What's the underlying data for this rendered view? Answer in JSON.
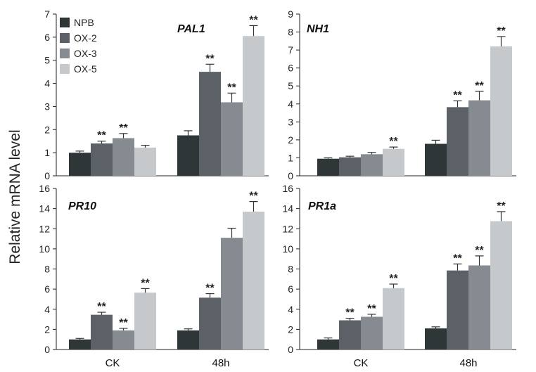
{
  "y_axis_label": "Relative mRNA level",
  "chart_data": [
    {
      "type": "bar",
      "title": "PAL1",
      "xlabel": "",
      "ylabel": "Relative mRNA level",
      "categories": [
        "CK",
        "48h"
      ],
      "ylim": [
        0,
        7
      ],
      "yticks": [
        0,
        1,
        2,
        3,
        4,
        5,
        6,
        7
      ],
      "error_bars": true,
      "series": [
        {
          "name": "NPB",
          "values": [
            1.0,
            1.75
          ],
          "errors": [
            0.07,
            0.2
          ],
          "annotations": [
            "",
            ""
          ]
        },
        {
          "name": "OX-2",
          "values": [
            1.4,
            4.5
          ],
          "errors": [
            0.1,
            0.33
          ],
          "annotations": [
            "**",
            "**"
          ]
        },
        {
          "name": "OX-3",
          "values": [
            1.63,
            3.18
          ],
          "errors": [
            0.2,
            0.4
          ],
          "annotations": [
            "**",
            "**"
          ]
        },
        {
          "name": "OX-5",
          "values": [
            1.22,
            6.05
          ],
          "errors": [
            0.1,
            0.45
          ],
          "annotations": [
            "",
            "**"
          ]
        }
      ]
    },
    {
      "type": "bar",
      "title": "NH1",
      "xlabel": "",
      "ylabel": "Relative mRNA level",
      "categories": [
        "CK",
        "48h"
      ],
      "ylim": [
        0,
        9
      ],
      "yticks": [
        0,
        1,
        2,
        3,
        4,
        5,
        6,
        7,
        8,
        9
      ],
      "error_bars": true,
      "series": [
        {
          "name": "NPB",
          "values": [
            0.95,
            1.78
          ],
          "errors": [
            0.05,
            0.2
          ],
          "annotations": [
            "",
            ""
          ]
        },
        {
          "name": "OX-2",
          "values": [
            1.03,
            3.82
          ],
          "errors": [
            0.06,
            0.35
          ],
          "annotations": [
            "",
            "**"
          ]
        },
        {
          "name": "OX-3",
          "values": [
            1.2,
            4.2
          ],
          "errors": [
            0.1,
            0.5
          ],
          "annotations": [
            "",
            "**"
          ]
        },
        {
          "name": "OX-5",
          "values": [
            1.5,
            7.2
          ],
          "errors": [
            0.1,
            0.55
          ],
          "annotations": [
            "**",
            "**"
          ]
        }
      ]
    },
    {
      "type": "bar",
      "title": "PR10",
      "xlabel": "",
      "ylabel": "Relative mRNA level",
      "categories": [
        "CK",
        "48h"
      ],
      "ylim": [
        0,
        16
      ],
      "yticks": [
        0,
        2,
        4,
        6,
        8,
        10,
        12,
        14,
        16
      ],
      "error_bars": true,
      "series": [
        {
          "name": "NPB",
          "values": [
            1.0,
            1.9
          ],
          "errors": [
            0.1,
            0.15
          ],
          "annotations": [
            "",
            ""
          ]
        },
        {
          "name": "OX-2",
          "values": [
            3.45,
            5.15
          ],
          "errors": [
            0.25,
            0.4
          ],
          "annotations": [
            "**",
            "**"
          ]
        },
        {
          "name": "OX-3",
          "values": [
            1.9,
            11.1
          ],
          "errors": [
            0.2,
            0.95
          ],
          "annotations": [
            "**",
            ""
          ]
        },
        {
          "name": "OX-5",
          "values": [
            5.65,
            13.7
          ],
          "errors": [
            0.4,
            1.0
          ],
          "annotations": [
            "**",
            "**"
          ]
        }
      ]
    },
    {
      "type": "bar",
      "title": "PR1a",
      "xlabel": "",
      "ylabel": "Relative mRNA level",
      "categories": [
        "CK",
        "48h"
      ],
      "ylim": [
        0,
        16
      ],
      "yticks": [
        0,
        2,
        4,
        6,
        8,
        10,
        12,
        14,
        16
      ],
      "error_bars": true,
      "series": [
        {
          "name": "NPB",
          "values": [
            1.0,
            2.1
          ],
          "errors": [
            0.15,
            0.15
          ],
          "annotations": [
            "",
            ""
          ]
        },
        {
          "name": "OX-2",
          "values": [
            2.9,
            7.85
          ],
          "errors": [
            0.2,
            0.65
          ],
          "annotations": [
            "**",
            "**"
          ]
        },
        {
          "name": "OX-3",
          "values": [
            3.25,
            8.35
          ],
          "errors": [
            0.25,
            0.95
          ],
          "annotations": [
            "**",
            "**"
          ]
        },
        {
          "name": "OX-5",
          "values": [
            6.1,
            12.75
          ],
          "errors": [
            0.4,
            0.95
          ],
          "annotations": [
            "**",
            "**"
          ]
        }
      ]
    }
  ],
  "legend": {
    "placement": "top-left of first panel",
    "items": [
      {
        "name": "NPB",
        "color": "#2e3638"
      },
      {
        "name": "OX-2",
        "color": "#5b6166"
      },
      {
        "name": "OX-3",
        "color": "#858b90"
      },
      {
        "name": "OX-5",
        "color": "#c6c9cc"
      }
    ]
  },
  "x_axis_labels": [
    "CK",
    "48h",
    "CK",
    "48h"
  ]
}
